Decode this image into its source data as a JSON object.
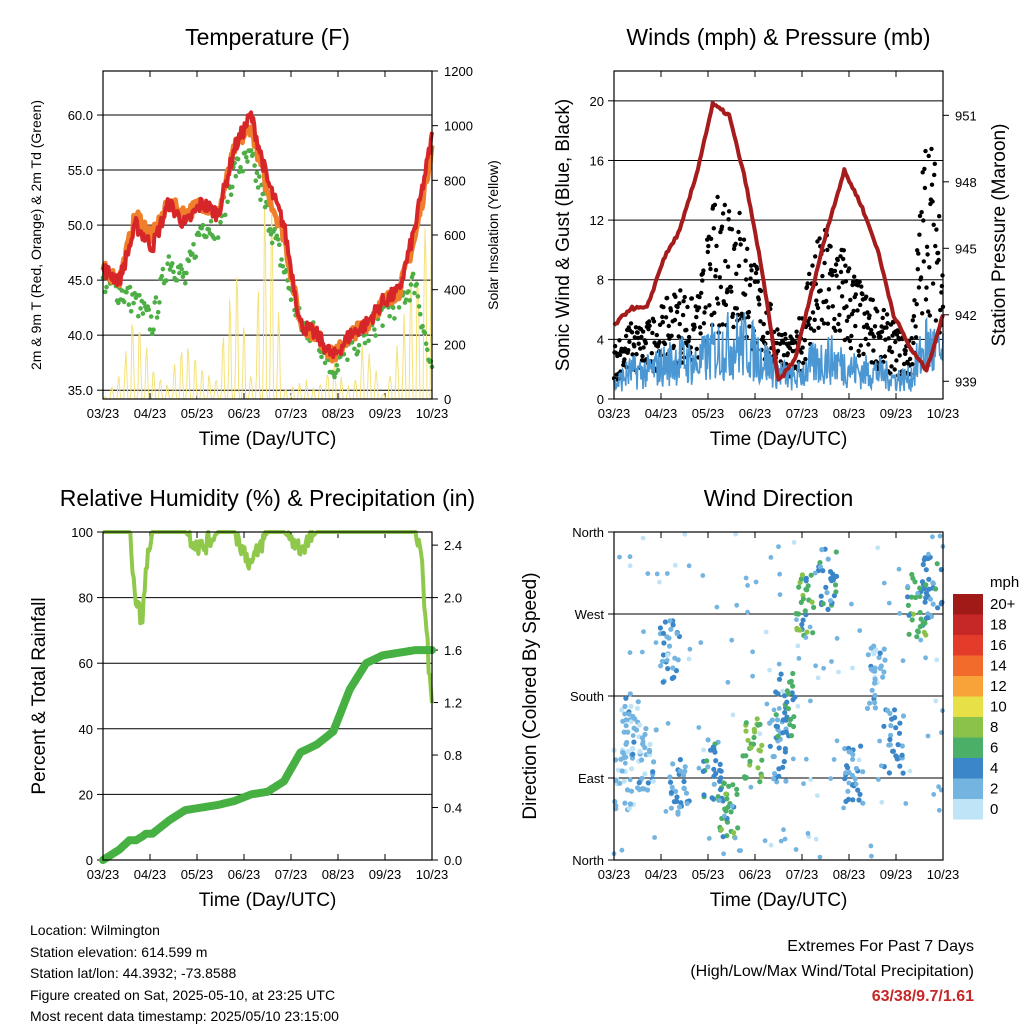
{
  "x_ticks": [
    "03/23",
    "04/23",
    "05/23",
    "06/23",
    "07/23",
    "08/23",
    "09/23",
    "10/23"
  ],
  "xlabel": "Time (Day/UTC)",
  "colors": {
    "temp2m": "#d6262a",
    "temp9m": "#f07f2c",
    "dewpoint": "#4cae45",
    "solar": "#f5e27a",
    "wind": "#4b97d3",
    "gust": "#000000",
    "pressure": "#a61b1b",
    "rh": "#8fc84a",
    "precip": "#47b042",
    "accent": "#c62828"
  },
  "chart_data": [
    {
      "id": "temperature",
      "type": "line",
      "title": "Temperature (F)",
      "xlabel": "Time (Day/UTC)",
      "ylabel": "2m & 9m T (Red, Orange) & 2m Td (Green)",
      "y2label": "Solar Insolation (Yellow)",
      "ylim": [
        34.2,
        64.0
      ],
      "y2lim": [
        0,
        1200
      ],
      "yticks": [
        "35.0",
        "40.0",
        "45.0",
        "50.0",
        "55.0",
        "60.0"
      ],
      "y2ticks": [
        "0",
        "200",
        "400",
        "600",
        "800",
        "1000",
        "1200"
      ],
      "grid": true,
      "x_positions": [
        0,
        0.05,
        0.1,
        0.15,
        0.2,
        0.25,
        0.3,
        0.35,
        0.4,
        0.45,
        0.5,
        0.55,
        0.6,
        0.65,
        0.7,
        0.75,
        0.8,
        0.85,
        0.9,
        0.95,
        1.0
      ],
      "series": [
        {
          "key": "temp2m",
          "values": [
            46,
            45,
            50,
            48,
            52,
            50,
            52,
            51,
            57,
            60,
            54,
            50,
            41,
            40,
            38,
            40,
            41,
            43,
            44,
            50,
            58
          ]
        },
        {
          "key": "temp9m",
          "values": [
            46,
            45,
            51,
            49,
            52,
            51,
            52,
            51,
            57,
            59,
            53,
            49,
            41,
            40,
            38,
            40,
            41,
            43,
            44,
            49,
            57
          ]
        },
        {
          "key": "dewpoint",
          "values": [
            45,
            44,
            43,
            41,
            47,
            45,
            50,
            50,
            55,
            56,
            51,
            46,
            41,
            40,
            37,
            39,
            40,
            42,
            43,
            45,
            36
          ]
        },
        {
          "key": "solar",
          "values": [
            0,
            100,
            420,
            150,
            50,
            300,
            120,
            100,
            600,
            80,
            1000,
            40,
            80,
            60,
            150,
            40,
            250,
            20,
            250,
            600,
            1150
          ]
        }
      ]
    },
    {
      "id": "winds",
      "type": "scatter",
      "title": "Winds (mph) & Pressure (mb)",
      "xlabel": "Time (Day/UTC)",
      "ylabel": "Sonic Wind & Gust (Blue, Black)",
      "y2label": "Station Pressure (Maroon)",
      "ylim": [
        0,
        22
      ],
      "y2lim": [
        938.2,
        953.0
      ],
      "yticks": [
        "0",
        "4",
        "8",
        "12",
        "16",
        "20"
      ],
      "y2ticks": [
        "939",
        "942",
        "945",
        "948",
        "951"
      ],
      "grid": true,
      "x_positions": [
        0,
        0.05,
        0.1,
        0.15,
        0.2,
        0.25,
        0.3,
        0.35,
        0.4,
        0.45,
        0.5,
        0.55,
        0.6,
        0.65,
        0.7,
        0.75,
        0.8,
        0.85,
        0.9,
        0.95,
        1.0
      ],
      "series": [
        {
          "key": "pressure",
          "values": [
            941.5,
            942.3,
            942.3,
            944.5,
            945.8,
            948.3,
            951.5,
            951.0,
            948,
            944,
            939,
            940,
            943,
            946,
            948.5,
            947,
            945,
            942,
            940.5,
            939.5,
            942
          ]
        },
        {
          "key": "wind",
          "values": [
            1,
            2,
            2,
            2.5,
            3,
            2.5,
            3.5,
            4,
            4,
            3,
            2,
            1.5,
            2.5,
            3,
            2.5,
            2,
            2,
            1.5,
            1.5,
            4,
            3
          ]
        },
        {
          "key": "gust",
          "values": [
            3,
            4,
            4,
            5,
            6,
            5,
            10,
            12,
            9,
            6,
            4,
            3,
            8,
            9,
            8,
            6,
            5,
            4,
            3,
            15,
            10
          ]
        }
      ]
    },
    {
      "id": "humidity",
      "type": "line",
      "title": "Relative Humidity (%) & Precipitation (in)",
      "xlabel": "Time (Day/UTC)",
      "ylabel": "Percent & Total Rainfall",
      "ylim": [
        0,
        100
      ],
      "y2lim": [
        0,
        2.5
      ],
      "yticks": [
        "0",
        "20",
        "40",
        "60",
        "80",
        "100"
      ],
      "y2ticks": [
        "0.0",
        "0.4",
        "0.8",
        "1.2",
        "1.6",
        "2.0",
        "2.4"
      ],
      "grid": true,
      "x_positions": [
        0,
        0.05,
        0.08,
        0.1,
        0.12,
        0.13,
        0.15,
        0.2,
        0.25,
        0.3,
        0.35,
        0.4,
        0.45,
        0.5,
        0.55,
        0.6,
        0.65,
        0.7,
        0.75,
        0.8,
        0.85,
        0.9,
        0.95,
        0.97,
        1.0
      ],
      "series": [
        {
          "key": "rh",
          "values": [
            100,
            100,
            100,
            80,
            72,
            90,
            100,
            100,
            100,
            95,
            100,
            100,
            90,
            100,
            100,
            95,
            100,
            100,
            100,
            100,
            100,
            100,
            100,
            90,
            45
          ]
        },
        {
          "key": "precip",
          "values": [
            0,
            0.08,
            0.15,
            0.15,
            0.18,
            0.2,
            0.2,
            0.3,
            0.38,
            0.4,
            0.42,
            0.45,
            0.5,
            0.52,
            0.6,
            0.82,
            0.88,
            0.98,
            1.3,
            1.5,
            1.56,
            1.58,
            1.6,
            1.6,
            1.6
          ]
        }
      ]
    },
    {
      "id": "direction",
      "type": "scatter",
      "title": "Wind Direction",
      "xlabel": "Time (Day/UTC)",
      "ylabel": "Direction (Colored By Speed)",
      "ylim": [
        0,
        360
      ],
      "yticks": [
        "North",
        "East",
        "South",
        "West",
        "North"
      ],
      "grid": true,
      "legend": {
        "title": "mph",
        "position": "right",
        "labels": [
          "20+",
          "18",
          "16",
          "14",
          "12",
          "10",
          "8",
          "6",
          "4",
          "2",
          "0"
        ],
        "colors": [
          "#a01a18",
          "#c62828",
          "#e43c2a",
          "#f26b2b",
          "#f7a33a",
          "#e8e047",
          "#8bc34a",
          "#4caf68",
          "#3a86c8",
          "#74b4e0",
          "#bfe3f7"
        ]
      },
      "clusters": [
        {
          "x": 0.03,
          "dir": 90,
          "speed": 1
        },
        {
          "x": 0.05,
          "dir": 150,
          "speed": 2
        },
        {
          "x": 0.1,
          "dir": 110,
          "speed": 2
        },
        {
          "x": 0.17,
          "dir": 230,
          "speed": 3
        },
        {
          "x": 0.2,
          "dir": 80,
          "speed": 3
        },
        {
          "x": 0.3,
          "dir": 100,
          "speed": 4
        },
        {
          "x": 0.35,
          "dir": 60,
          "speed": 6
        },
        {
          "x": 0.42,
          "dir": 120,
          "speed": 7
        },
        {
          "x": 0.5,
          "dir": 120,
          "speed": 3
        },
        {
          "x": 0.52,
          "dir": 170,
          "speed": 5
        },
        {
          "x": 0.58,
          "dir": 280,
          "speed": 6
        },
        {
          "x": 0.65,
          "dir": 310,
          "speed": 4
        },
        {
          "x": 0.73,
          "dir": 90,
          "speed": 3
        },
        {
          "x": 0.8,
          "dir": 200,
          "speed": 2
        },
        {
          "x": 0.85,
          "dir": 130,
          "speed": 3
        },
        {
          "x": 0.92,
          "dir": 280,
          "speed": 6
        },
        {
          "x": 0.97,
          "dir": 300,
          "speed": 4
        }
      ]
    }
  ],
  "info": {
    "location": "Location: Wilmington",
    "elevation": "Station elevation: 614.599 m",
    "latlon": "Station lat/lon: 44.3932; -73.8588",
    "created": "Figure created on Sat, 2025-05-10, at 23:25 UTC",
    "recent": "Most recent data timestamp: 2025/05/10 23:15:00"
  },
  "extremes": {
    "title": "Extremes For Past 7 Days",
    "subtitle": "(High/Low/Max Wind/Total Precipitation)",
    "value": "63/38/9.7/1.61"
  }
}
